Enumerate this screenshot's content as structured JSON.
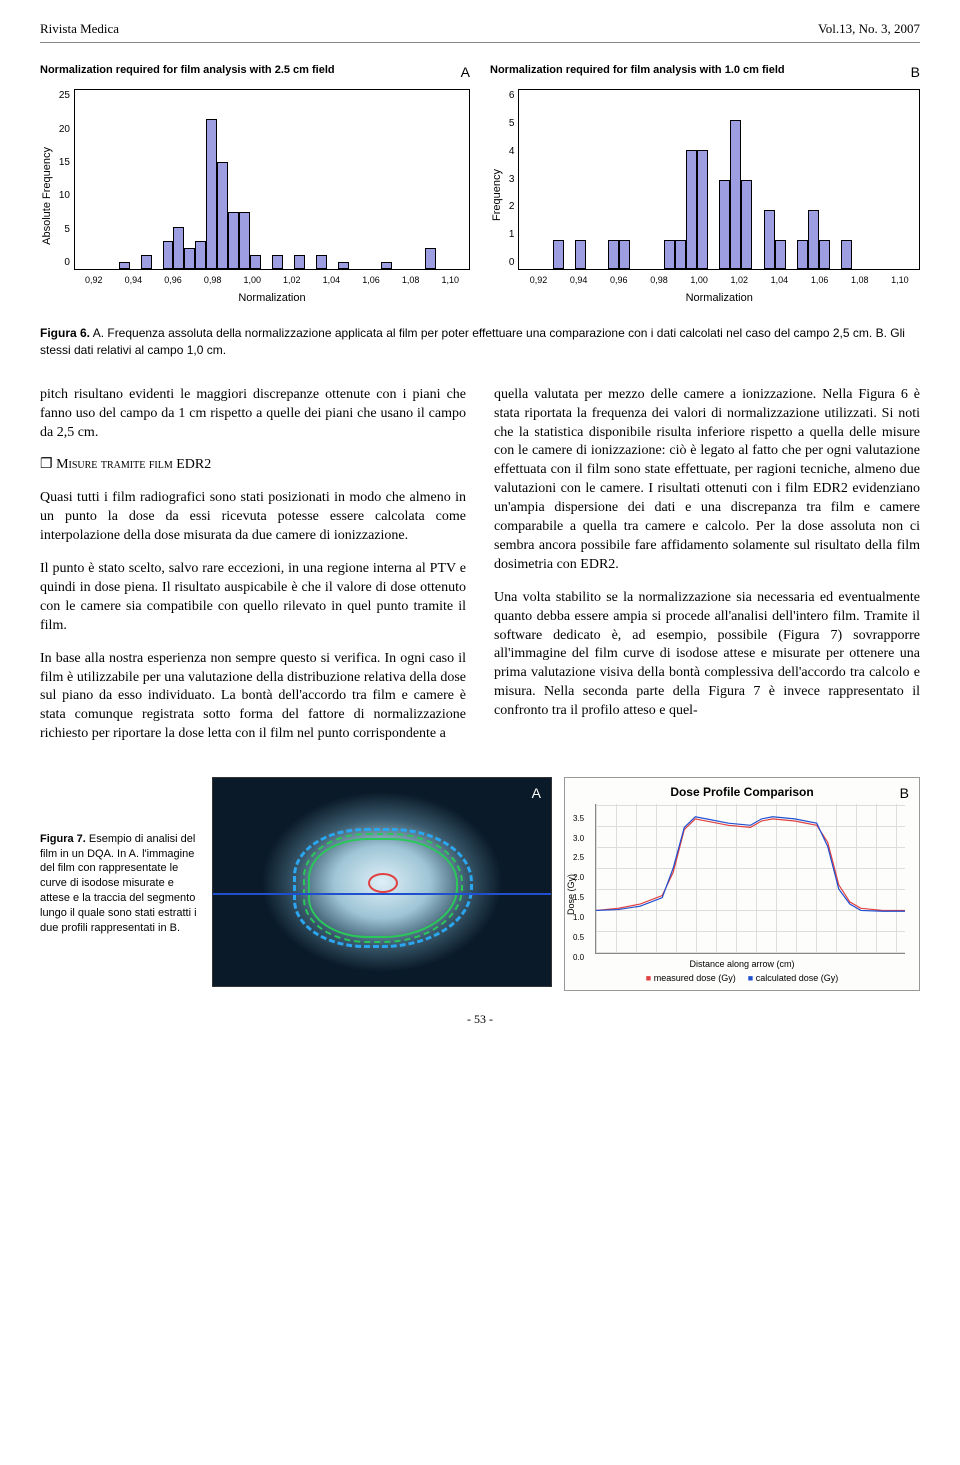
{
  "header": {
    "journal": "Rivista Medica",
    "issue": "Vol.13, No. 3, 2007"
  },
  "chartA": {
    "type": "histogram",
    "title": "Normalization required for film analysis with 2.5 cm field",
    "panel_letter": "A",
    "y_label": "Absolute Frequency",
    "x_label": "Normalization",
    "y_ticks": [
      "25",
      "20",
      "15",
      "10",
      "5",
      "0"
    ],
    "x_ticks": [
      "0,92",
      "0,94",
      "0,96",
      "0,98",
      "1,00",
      "1,02",
      "1,04",
      "1,06",
      "1,08",
      "1,10"
    ],
    "y_max": 25,
    "bar_color": "#9d9de1",
    "bar_border": "#000000",
    "background": "#ffffff",
    "bins": [
      {
        "x": 0.94,
        "h": 1
      },
      {
        "x": 0.95,
        "h": 2
      },
      {
        "x": 0.96,
        "h": 4
      },
      {
        "x": 0.965,
        "h": 6
      },
      {
        "x": 0.97,
        "h": 3
      },
      {
        "x": 0.975,
        "h": 4
      },
      {
        "x": 0.98,
        "h": 21
      },
      {
        "x": 0.985,
        "h": 15
      },
      {
        "x": 0.99,
        "h": 8
      },
      {
        "x": 0.995,
        "h": 8
      },
      {
        "x": 1.0,
        "h": 2
      },
      {
        "x": 1.01,
        "h": 2
      },
      {
        "x": 1.02,
        "h": 2
      },
      {
        "x": 1.03,
        "h": 2
      },
      {
        "x": 1.04,
        "h": 1
      },
      {
        "x": 1.06,
        "h": 1
      },
      {
        "x": 1.08,
        "h": 3
      }
    ],
    "x_min": 0.92,
    "x_max": 1.1,
    "bin_width": 0.005
  },
  "chartB": {
    "type": "histogram",
    "title": "Normalization required for film analysis with 1.0 cm field",
    "panel_letter": "B",
    "y_label": "Frequency",
    "x_label": "Normalization",
    "y_ticks": [
      "6",
      "5",
      "4",
      "3",
      "2",
      "1",
      "0"
    ],
    "x_ticks": [
      "0,92",
      "0,94",
      "0,96",
      "0,98",
      "1,00",
      "1,02",
      "1,04",
      "1,06",
      "1,08",
      "1,10"
    ],
    "y_max": 6,
    "bar_color": "#9d9de1",
    "bar_border": "#000000",
    "background": "#ffffff",
    "bins": [
      {
        "x": 0.935,
        "h": 1
      },
      {
        "x": 0.945,
        "h": 1
      },
      {
        "x": 0.96,
        "h": 1
      },
      {
        "x": 0.965,
        "h": 1
      },
      {
        "x": 0.985,
        "h": 1
      },
      {
        "x": 0.99,
        "h": 1
      },
      {
        "x": 0.995,
        "h": 4
      },
      {
        "x": 1.0,
        "h": 4
      },
      {
        "x": 1.01,
        "h": 3
      },
      {
        "x": 1.015,
        "h": 5
      },
      {
        "x": 1.02,
        "h": 3
      },
      {
        "x": 1.03,
        "h": 2
      },
      {
        "x": 1.035,
        "h": 1
      },
      {
        "x": 1.045,
        "h": 1
      },
      {
        "x": 1.05,
        "h": 2
      },
      {
        "x": 1.055,
        "h": 1
      },
      {
        "x": 1.065,
        "h": 1
      }
    ],
    "x_min": 0.92,
    "x_max": 1.1,
    "bin_width": 0.005
  },
  "fig6_caption_bold": "Figura 6.",
  "fig6_caption_body": "A. Frequenza assoluta della normalizzazione applicata al film per poter effettuare una comparazione con i dati calcolati nel caso del campo 2,5 cm. B. Gli stessi dati relativi al campo 1,0 cm.",
  "body": {
    "p1": "pitch risultano evidenti le maggiori discrepanze ottenute con i piani che fanno uso del campo da 1 cm rispetto a quelle dei piani che usano il campo da 2,5 cm.",
    "sec_heading": "Misure tramite film EDR2",
    "p2": "Quasi tutti i film radiografici sono stati posizionati in modo che almeno in un punto la dose da essi ricevuta potesse essere calcolata come interpolazione della dose misurata da due camere di ionizzazione.",
    "p3": "Il punto è stato scelto, salvo rare eccezioni, in una regione interna al PTV e quindi in dose piena. Il risultato auspicabile è che il valore di dose ottenuto con le camere sia compatibile con quello rilevato in quel punto tramite il film.",
    "p4": "In base alla nostra esperienza non sempre questo si verifica. In ogni caso il film è utilizzabile per una valutazione della distribuzione relativa della dose sul piano da esso individuato. La bontà dell'accordo tra film e camere è stata comunque registrata sotto forma del fattore di normalizzazione richiesto per riportare la dose letta con il film nel punto corrispondente a",
    "p5": "quella valutata per mezzo delle camere a ionizzazione. Nella Figura 6 è stata riportata la frequenza dei valori di normalizzazione utilizzati. Si noti che la statistica disponibile risulta inferiore rispetto a quella delle misure con le camere di ionizzazione: ciò è legato al fatto che per ogni valutazione effettuata con il film sono state effettuate, per ragioni tecniche, almeno due valutazioni con le camere. I risultati ottenuti con i film EDR2 evidenziano un'ampia dispersione dei dati e una discrepanza tra film e camere comparabile a quella tra camere e calcolo. Per la dose assoluta non ci sembra ancora possibile fare affidamento solamente sul risultato della film dosimetria con EDR2.",
    "p6": "Una volta stabilito se la normalizzazione sia necessaria ed eventualmente quanto debba essere ampia si procede all'analisi dell'intero film. Tramite il software dedicato è, ad esempio, possibile (Figura 7) sovrapporre all'immagine del film curve di isodose attese e misurate per ottenere una prima valutazione visiva della bontà complessiva dell'accordo tra calcolo e misura. Nella seconda parte della Figura 7 è invece rappresentato il confronto tra il profilo atteso e quel-"
  },
  "fig7": {
    "caption_bold": "Figura 7.",
    "caption_body": "Esempio di analisi del film in un DQA. In A. l'immagine del film con rappresentate le curve di isodose misurate e attese e la traccia del segmento lungo il quale sono stati estratti i due profili rappresentati in B.",
    "panelA_letter": "A",
    "panelA_colors": {
      "bg_outer": "#0a1a28",
      "bg_inner": "#dfeff7",
      "iso_blue": "#2aa7f0",
      "iso_green": "#2ac85a",
      "iso_red": "#e04040",
      "trace": "#2050d0"
    },
    "panelB": {
      "letter": "B",
      "title": "Dose Profile Comparison",
      "y_label": "Dose (Gy)",
      "x_label": "Distance along arrow (cm)",
      "y_ticks": [
        "3.5",
        "3.0",
        "2.5",
        "2.0",
        "1.5",
        "1.0",
        "0.5",
        "0.0"
      ],
      "y_min": 0.0,
      "y_max": 3.5,
      "x_min": 0,
      "x_max": 14,
      "grid_color": "#d8d8d8",
      "legend": {
        "measured": "measured dose (Gy)",
        "calculated": "calculated dose (Gy)"
      },
      "measured_color": "#e04040",
      "calculated_color": "#2050d0",
      "profile_measured": [
        [
          0,
          1.0
        ],
        [
          1,
          1.05
        ],
        [
          2,
          1.15
        ],
        [
          3,
          1.35
        ],
        [
          3.5,
          1.9
        ],
        [
          4,
          2.9
        ],
        [
          4.5,
          3.15
        ],
        [
          5,
          3.1
        ],
        [
          6,
          3.0
        ],
        [
          7,
          2.95
        ],
        [
          7.5,
          3.1
        ],
        [
          8,
          3.15
        ],
        [
          9,
          3.1
        ],
        [
          10,
          3.0
        ],
        [
          10.5,
          2.6
        ],
        [
          11,
          1.6
        ],
        [
          11.5,
          1.2
        ],
        [
          12,
          1.05
        ],
        [
          13,
          1.0
        ],
        [
          14,
          1.0
        ]
      ],
      "profile_calculated": [
        [
          0,
          1.0
        ],
        [
          1,
          1.02
        ],
        [
          2,
          1.1
        ],
        [
          3,
          1.3
        ],
        [
          3.5,
          2.0
        ],
        [
          4,
          2.95
        ],
        [
          4.5,
          3.2
        ],
        [
          5,
          3.15
        ],
        [
          6,
          3.05
        ],
        [
          7,
          3.0
        ],
        [
          7.5,
          3.15
        ],
        [
          8,
          3.2
        ],
        [
          9,
          3.15
        ],
        [
          10,
          3.05
        ],
        [
          10.5,
          2.5
        ],
        [
          11,
          1.5
        ],
        [
          11.5,
          1.15
        ],
        [
          12,
          1.0
        ],
        [
          13,
          0.98
        ],
        [
          14,
          0.98
        ]
      ]
    }
  },
  "page_number": "- 53 -"
}
